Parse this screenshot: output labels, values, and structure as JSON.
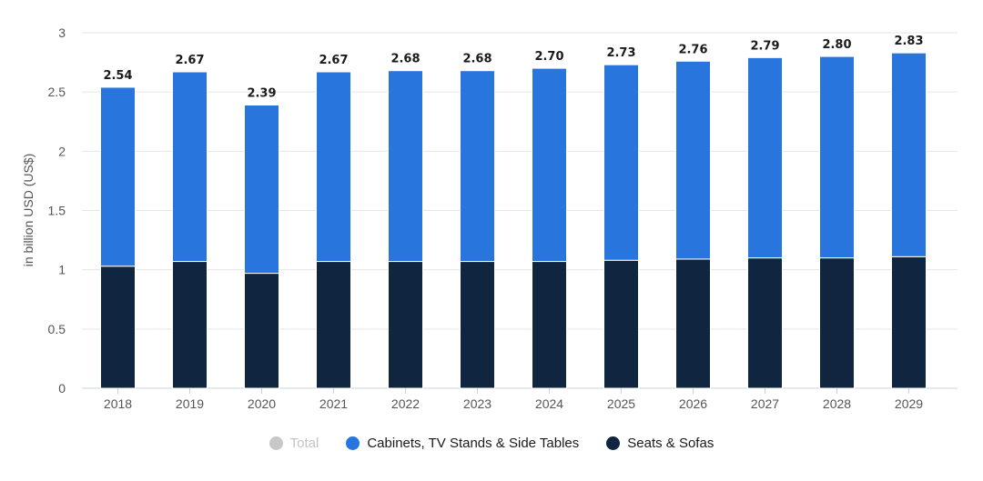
{
  "chart_data": {
    "type": "bar",
    "stacked": true,
    "categories": [
      "2018",
      "2019",
      "2020",
      "2021",
      "2022",
      "2023",
      "2024",
      "2025",
      "2026",
      "2027",
      "2028",
      "2029"
    ],
    "series": [
      {
        "name": "Seats & Sofas",
        "color": "#10253f",
        "values": [
          1.03,
          1.07,
          0.97,
          1.07,
          1.07,
          1.07,
          1.07,
          1.08,
          1.09,
          1.1,
          1.1,
          1.11
        ]
      },
      {
        "name": "Cabinets, TV Stands & Side Tables",
        "color": "#2876dd",
        "values": [
          1.51,
          1.6,
          1.42,
          1.6,
          1.61,
          1.61,
          1.63,
          1.65,
          1.67,
          1.69,
          1.7,
          1.72
        ]
      }
    ],
    "totals": [
      "2.54",
      "2.67",
      "2.39",
      "2.67",
      "2.68",
      "2.68",
      "2.70",
      "2.73",
      "2.76",
      "2.79",
      "2.80",
      "2.83"
    ],
    "y_ticks": [
      "0",
      "0.5",
      "1",
      "1.5",
      "2",
      "2.5",
      "3"
    ],
    "ylim": [
      0,
      3
    ],
    "ylabel": "in billion USD (US$)",
    "xlabel": "",
    "title": "",
    "grid": true,
    "legend_position": "bottom-center",
    "legend": [
      {
        "name": "Total",
        "color": "#c8c8c8",
        "hidden": true
      },
      {
        "name": "Cabinets, TV Stands & Side Tables",
        "color": "#2876dd",
        "hidden": false
      },
      {
        "name": "Seats & Sofas",
        "color": "#10253f",
        "hidden": false
      }
    ]
  },
  "colors": {
    "grid": "#e6e6e6",
    "axis": "#cccccc",
    "axis_baseline": "#c9d4e3"
  }
}
